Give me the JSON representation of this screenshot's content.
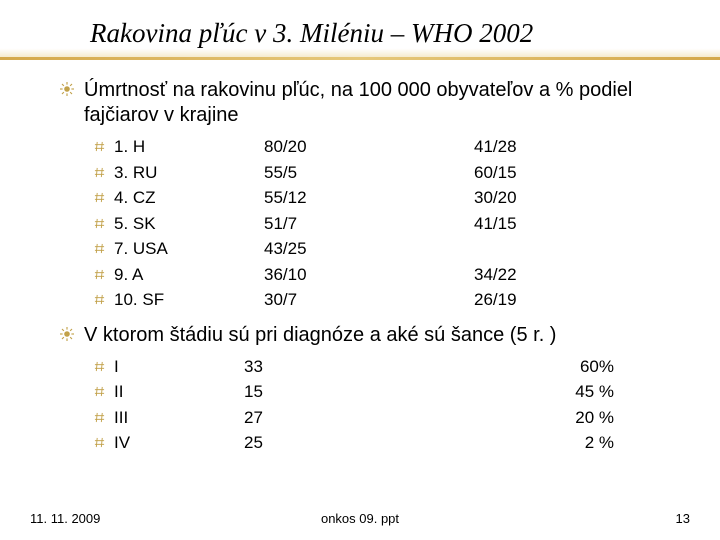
{
  "title": "Rakovina pľúc v 3. Miléniu – WHO 2002",
  "bullet1": "Úmrtnosť na rakovinu pľúc, na 100 000 obyvateľov a % podiel fajčiarov v krajine",
  "countries": [
    {
      "rank": "1. H",
      "col2": "80/20",
      "col3": "41/28"
    },
    {
      "rank": "3. RU",
      "col2": "55/5",
      "col3": "60/15"
    },
    {
      "rank": "4. CZ",
      "col2": "55/12",
      "col3": "30/20"
    },
    {
      "rank": "5. SK",
      "col2": "51/7",
      "col3": "41/15"
    },
    {
      "rank": "7. USA",
      "col2": "43/25",
      "col3": ""
    },
    {
      "rank": "9. A",
      "col2": "36/10",
      "col3": "34/22"
    },
    {
      "rank": "10. SF",
      "col2": "30/7",
      "col3": "26/19"
    }
  ],
  "bullet2": "V ktorom štádiu sú pri diagnóze a aké sú šance (5 r. )",
  "stages": [
    {
      "stage": "I",
      "pct": "33",
      "surv": "60%"
    },
    {
      "stage": "II",
      "pct": "15",
      "surv": "45 %"
    },
    {
      "stage": "III",
      "pct": "27",
      "surv": "20 %"
    },
    {
      "stage": "IV",
      "pct": "25",
      "surv": "2 %"
    }
  ],
  "footer": {
    "date": "11. 11. 2009",
    "file": "onkos 09. ppt",
    "page": "13"
  },
  "colors": {
    "accent": "#c2a14a",
    "text": "#000000",
    "bg": "#ffffff"
  }
}
